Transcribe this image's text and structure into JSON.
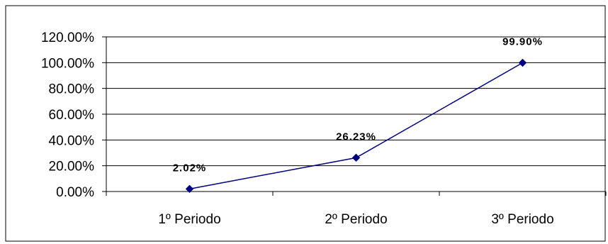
{
  "chart_data": {
    "type": "line",
    "title": "",
    "xlabel": "",
    "ylabel": "",
    "categories": [
      "1º Periodo",
      "2º Periodo",
      "3º Periodo"
    ],
    "series": [
      {
        "values": [
          2.02,
          26.23,
          99.9
        ],
        "labels": [
          "2.02%",
          "26.23%",
          "99.90%"
        ]
      }
    ],
    "ylim": [
      0,
      120
    ],
    "yticks": [
      0,
      20,
      40,
      60,
      80,
      100,
      120
    ],
    "ytick_labels": [
      "0.00%",
      "20.00%",
      "40.00%",
      "60.00%",
      "80.00%",
      "100.00%",
      "120.00%"
    ],
    "grid": true,
    "legend": "none",
    "colors": {
      "line": "#000080",
      "marker": "#000080",
      "grid": "#000000",
      "frame": "#000000"
    }
  }
}
